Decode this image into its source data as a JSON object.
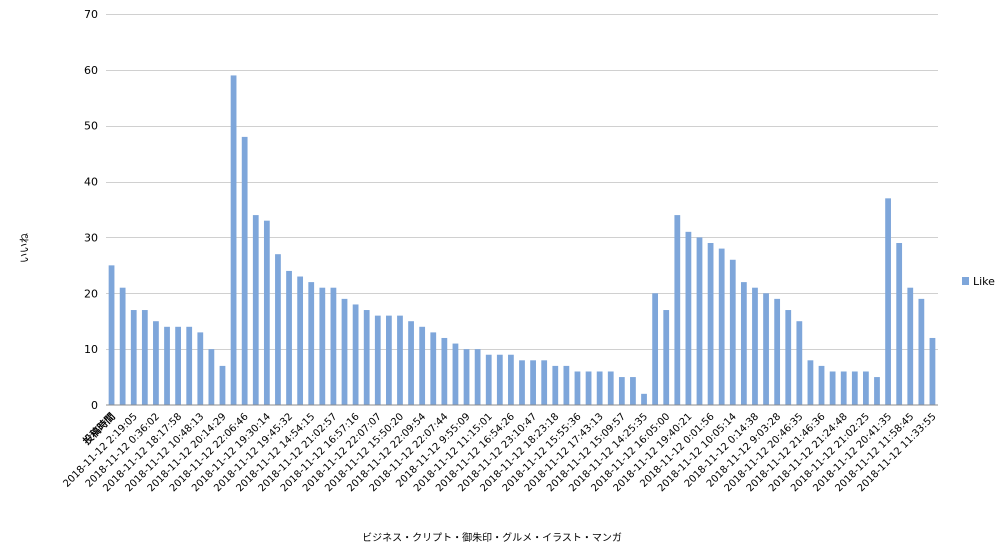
{
  "chart_data": {
    "type": "bar",
    "title": "",
    "xlabel": "ビジネス・クリプト・御朱印・グルメ・イラスト・マンガ",
    "ylabel": "いいね",
    "ylim": [
      0,
      70
    ],
    "yticks": [
      0,
      10,
      20,
      30,
      40,
      50,
      60,
      70
    ],
    "grid": "horizontal",
    "legend_placement": "right",
    "bar_color": "#7EA6DA",
    "categories": [
      "投稿時間",
      "",
      "2018-11-12 2:19:05",
      "",
      "2018-11-12 0:36:02",
      "",
      "2018-11-12 18:17:58",
      "",
      "2018-11-12 10:48:13",
      "",
      "2018-11-12 20:14:29",
      "",
      "2018-11-12 22:06:46",
      "",
      "2018-11-12 19:30:14",
      "",
      "2018-11-12 19:45:32",
      "",
      "2018-11-12 14:54:15",
      "",
      "2018-11-12 21:02:57",
      "",
      "2018-11-12 16:57:16",
      "",
      "2018-11-12 22:07:07",
      "",
      "2018-11-12 15:50:20",
      "",
      "2018-11-12 22:09:54",
      "",
      "2018-11-12 22:07:44",
      "",
      "2018-11-12 9:55:09",
      "",
      "2018-11-12 11:15:01",
      "",
      "2018-11-12 16:54:26",
      "",
      "2018-11-12 23:10:47",
      "",
      "2018-11-12 18:23:18",
      "",
      "2018-11-12 15:55:36",
      "",
      "2018-11-12 17:43:13",
      "",
      "2018-11-12 15:09:57",
      "",
      "2018-11-12 14:25:35",
      "",
      "2018-11-12 16:05:00",
      "",
      "2018-11-12 19:40:21",
      "",
      "2018-11-12 0:01:56",
      "",
      "2018-11-12 10:05:14",
      "",
      "2018-11-12 0:14:38",
      "",
      "2018-11-12 9:03:28",
      "",
      "2018-11-12 20:46:35",
      "",
      "2018-11-12 21:46:36",
      "",
      "2018-11-12 21:24:48",
      "",
      "2018-11-12 21:02:25",
      "",
      "2018-11-12 20:41:35",
      "",
      "2018-11-12 11:58:45",
      "",
      "2018-11-12 11:33:55"
    ],
    "series": [
      {
        "name": "Like",
        "values": [
          25,
          21,
          17,
          17,
          15,
          14,
          14,
          14,
          13,
          10,
          7,
          59,
          48,
          34,
          33,
          27,
          24,
          23,
          22,
          21,
          21,
          19,
          18,
          17,
          16,
          16,
          16,
          15,
          14,
          13,
          12,
          11,
          10,
          10,
          9,
          9,
          9,
          8,
          8,
          8,
          7,
          7,
          6,
          6,
          6,
          6,
          5,
          5,
          2,
          20,
          17,
          34,
          31,
          30,
          29,
          28,
          26,
          22,
          21,
          20,
          19,
          17,
          15,
          8,
          7,
          6,
          6,
          6,
          6,
          5,
          37,
          29,
          21,
          19,
          12
        ]
      }
    ]
  }
}
